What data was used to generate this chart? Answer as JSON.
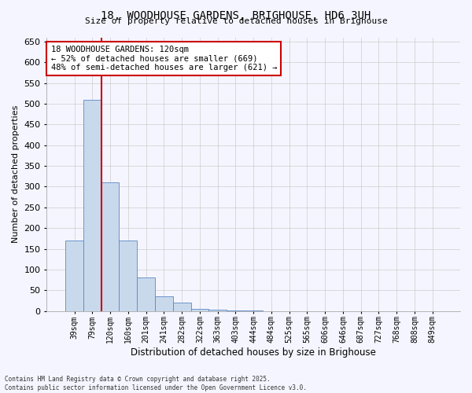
{
  "title_line1": "18, WOODHOUSE GARDENS, BRIGHOUSE, HD6 3UH",
  "title_line2": "Size of property relative to detached houses in Brighouse",
  "xlabel": "Distribution of detached houses by size in Brighouse",
  "ylabel": "Number of detached properties",
  "categories": [
    "39sqm",
    "79sqm",
    "120sqm",
    "160sqm",
    "201sqm",
    "241sqm",
    "282sqm",
    "322sqm",
    "363sqm",
    "403sqm",
    "444sqm",
    "484sqm",
    "525sqm",
    "565sqm",
    "606sqm",
    "646sqm",
    "687sqm",
    "727sqm",
    "768sqm",
    "808sqm",
    "849sqm"
  ],
  "values": [
    170,
    510,
    310,
    170,
    80,
    35,
    20,
    5,
    3,
    1,
    1,
    0,
    0,
    0,
    0,
    0,
    0,
    0,
    0,
    0,
    0
  ],
  "bar_color": "#c9d9ec",
  "bar_edge_color": "#5a87c5",
  "highlight_bar_index": 2,
  "highlight_line_color": "#cc0000",
  "annotation_text": "18 WOODHOUSE GARDENS: 120sqm\n← 52% of detached houses are smaller (669)\n48% of semi-detached houses are larger (621) →",
  "annotation_box_color": "#ffffff",
  "annotation_box_edge_color": "#cc0000",
  "ylim": [
    0,
    660
  ],
  "yticks": [
    0,
    50,
    100,
    150,
    200,
    250,
    300,
    350,
    400,
    450,
    500,
    550,
    600,
    650
  ],
  "footnote": "Contains HM Land Registry data © Crown copyright and database right 2025.\nContains public sector information licensed under the Open Government Licence v3.0.",
  "grid_color": "#cccccc",
  "background_color": "#f5f5ff"
}
